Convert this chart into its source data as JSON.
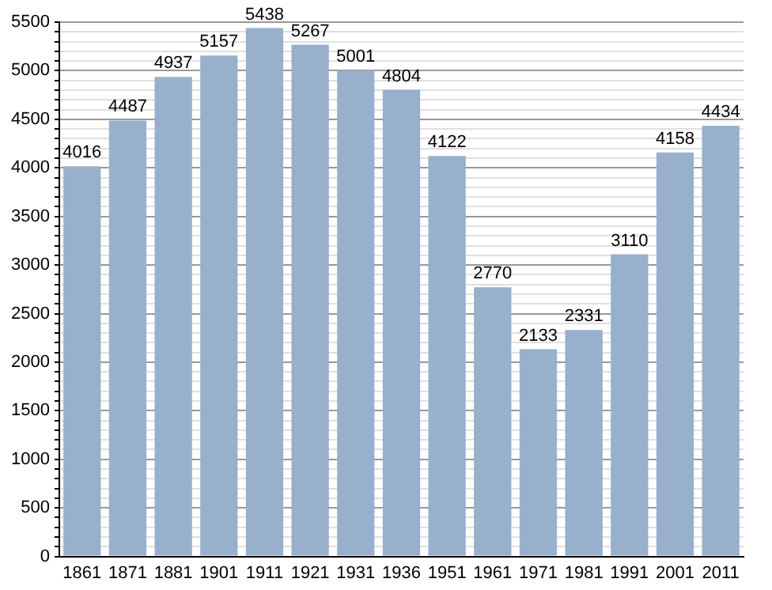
{
  "chart_data": {
    "type": "bar",
    "categories": [
      "1861",
      "1871",
      "1881",
      "1901",
      "1911",
      "1921",
      "1931",
      "1936",
      "1951",
      "1961",
      "1971",
      "1981",
      "1991",
      "2001",
      "2011"
    ],
    "values": [
      4016,
      4487,
      4937,
      5157,
      5438,
      5267,
      5001,
      4804,
      4122,
      2770,
      2133,
      2331,
      3110,
      4158,
      4434
    ],
    "color": "#98b0cc",
    "data_labels": true,
    "grid": "y",
    "legend": false,
    "ylim": [
      0,
      5500
    ],
    "yticks": [
      0,
      {
        "value": 100,
        "label": null
      },
      {
        "value": 200,
        "label": null
      },
      {
        "value": 300,
        "label": null
      },
      {
        "value": 400,
        "label": null
      },
      500,
      {
        "value": 600,
        "label": null
      },
      {
        "value": 700,
        "label": null
      },
      {
        "value": 800,
        "label": null
      },
      {
        "value": 900,
        "label": null
      },
      1000,
      {
        "value": 1100,
        "label": null
      },
      {
        "value": 1200,
        "label": null
      },
      {
        "value": 1300,
        "label": null
      },
      {
        "value": 1400,
        "label": null
      },
      1500,
      {
        "value": 1600,
        "label": null
      },
      {
        "value": 1700,
        "label": null
      },
      {
        "value": 1800,
        "label": null
      },
      {
        "value": 1900,
        "label": null
      },
      2000,
      {
        "value": 2100,
        "label": null
      },
      {
        "value": 2200,
        "label": null
      },
      {
        "value": 2300,
        "label": null
      },
      {
        "value": 2400,
        "label": null
      },
      2500,
      {
        "value": 2600,
        "label": null
      },
      {
        "value": 2700,
        "label": null
      },
      {
        "value": 2800,
        "label": null
      },
      {
        "value": 2900,
        "label": null
      },
      3000,
      {
        "value": 3100,
        "label": null
      },
      {
        "value": 3200,
        "label": null
      },
      {
        "value": 3300,
        "label": null
      },
      {
        "value": 3400,
        "label": null
      },
      3500,
      {
        "value": 3600,
        "label": null
      },
      {
        "value": 3700,
        "label": null
      },
      {
        "value": 3800,
        "label": null
      },
      {
        "value": 3900,
        "label": null
      },
      4000,
      {
        "value": 4100,
        "label": null
      },
      {
        "value": 4200,
        "label": null
      },
      {
        "value": 4300,
        "label": null
      },
      {
        "value": 4400,
        "label": null
      },
      4500,
      {
        "value": 4600,
        "label": null
      },
      {
        "value": 4700,
        "label": null
      },
      {
        "value": 4800,
        "label": null
      },
      {
        "value": 4900,
        "label": null
      },
      5000,
      {
        "value": 5100,
        "label": null
      },
      {
        "value": 5200,
        "label": null
      },
      {
        "value": 5300,
        "label": null
      },
      {
        "value": 5400,
        "label": null
      },
      5500
    ]
  }
}
